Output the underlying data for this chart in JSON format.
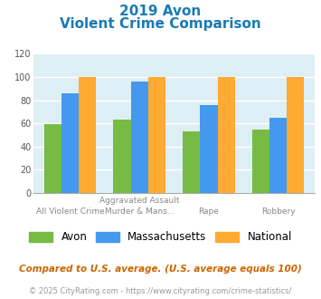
{
  "title_line1": "2019 Avon",
  "title_line2": "Violent Crime Comparison",
  "cat_top_labels": [
    "",
    "Aggravated Assault",
    "",
    ""
  ],
  "cat_bot_labels": [
    "All Violent Crime",
    "Murder & Mans...",
    "Rape",
    "Robbery"
  ],
  "series": {
    "Avon": [
      59,
      63,
      53,
      55
    ],
    "Massachusetts": [
      86,
      96,
      76,
      65
    ],
    "National": [
      100,
      100,
      100,
      100
    ]
  },
  "colors": {
    "Avon": "#77bb44",
    "Massachusetts": "#4499ee",
    "National": "#ffaa33"
  },
  "ylim": [
    0,
    120
  ],
  "yticks": [
    0,
    20,
    40,
    60,
    80,
    100,
    120
  ],
  "plot_bg": "#ddeef5",
  "grid_color": "#ffffff",
  "title_color": "#1a7ab5",
  "footnote1": "Compared to U.S. average. (U.S. average equals 100)",
  "footnote2": "© 2025 CityRating.com - https://www.cityrating.com/crime-statistics/",
  "footnote1_color": "#cc6600",
  "footnote2_color": "#999999"
}
